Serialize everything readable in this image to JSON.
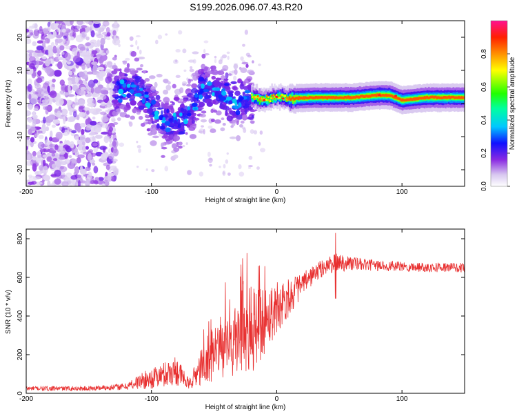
{
  "title": "S199.2026.096.07.43.R20",
  "chart_data": [
    {
      "type": "heatmap",
      "xlabel": "Height of straight line (km)",
      "ylabel": "Frequency (Hz)",
      "xlim": [
        -200,
        150
      ],
      "ylim": [
        -25,
        25
      ],
      "xticks": [
        -200,
        -100,
        0,
        100
      ],
      "yticks": [
        -20,
        -10,
        0,
        10,
        20
      ],
      "colorbar": {
        "label": "Normalized spectral amplitude",
        "range": [
          0,
          1
        ],
        "ticks": [
          "0.0",
          "0.2",
          "0.4",
          "0.6",
          "0.8"
        ]
      },
      "ridge": [
        {
          "x": -125,
          "f": 4
        },
        {
          "x": -110,
          "f": 4
        },
        {
          "x": -100,
          "f": -1
        },
        {
          "x": -90,
          "f": -5
        },
        {
          "x": -80,
          "f": -6
        },
        {
          "x": -70,
          "f": -2
        },
        {
          "x": -60,
          "f": 4
        },
        {
          "x": -50,
          "f": 4
        },
        {
          "x": -40,
          "f": 2
        },
        {
          "x": -30,
          "f": 0
        },
        {
          "x": -20,
          "f": 2
        },
        {
          "x": -10,
          "f": 1
        },
        {
          "x": 0,
          "f": 2
        },
        {
          "x": 10,
          "f": 1.5
        },
        {
          "x": 30,
          "f": 1.8
        },
        {
          "x": 60,
          "f": 1.8
        },
        {
          "x": 80,
          "f": 2.5
        },
        {
          "x": 90,
          "f": 2.5
        },
        {
          "x": 100,
          "f": 1
        },
        {
          "x": 120,
          "f": 1.8
        },
        {
          "x": 150,
          "f": 1.8
        }
      ]
    },
    {
      "type": "line",
      "xlabel": "Height of straight line (km)",
      "ylabel": "SNR (10 * v/v)",
      "xlim": [
        -200,
        150
      ],
      "ylim": [
        0,
        850
      ],
      "xticks": [
        -200,
        -100,
        0,
        100
      ],
      "yticks": [
        0,
        200,
        400,
        600,
        800
      ],
      "series": [
        {
          "name": "SNR",
          "color": "#e83030",
          "envelope": [
            {
              "x": -200,
              "mean": 25,
              "noise": 12
            },
            {
              "x": -150,
              "mean": 25,
              "noise": 12
            },
            {
              "x": -120,
              "mean": 35,
              "noise": 18
            },
            {
              "x": -110,
              "mean": 60,
              "noise": 40
            },
            {
              "x": -95,
              "mean": 85,
              "noise": 60
            },
            {
              "x": -80,
              "mean": 120,
              "noise": 80
            },
            {
              "x": -70,
              "mean": 45,
              "noise": 25
            },
            {
              "x": -60,
              "mean": 140,
              "noise": 100
            },
            {
              "x": -45,
              "mean": 220,
              "noise": 160
            },
            {
              "x": -30,
              "mean": 280,
              "noise": 200
            },
            {
              "x": -20,
              "mean": 320,
              "noise": 240
            },
            {
              "x": -10,
              "mean": 380,
              "noise": 180
            },
            {
              "x": 0,
              "mean": 450,
              "noise": 140
            },
            {
              "x": 10,
              "mean": 500,
              "noise": 100
            },
            {
              "x": 20,
              "mean": 560,
              "noise": 60
            },
            {
              "x": 30,
              "mean": 620,
              "noise": 50
            },
            {
              "x": 40,
              "mean": 660,
              "noise": 45
            },
            {
              "x": 50,
              "mean": 680,
              "noise": 50
            },
            {
              "x": 70,
              "mean": 665,
              "noise": 30
            },
            {
              "x": 100,
              "mean": 655,
              "noise": 25
            },
            {
              "x": 150,
              "mean": 650,
              "noise": 25
            }
          ],
          "peak": {
            "x": 47,
            "y": 830
          },
          "dip": {
            "x": 47,
            "y": 490
          }
        }
      ]
    }
  ]
}
